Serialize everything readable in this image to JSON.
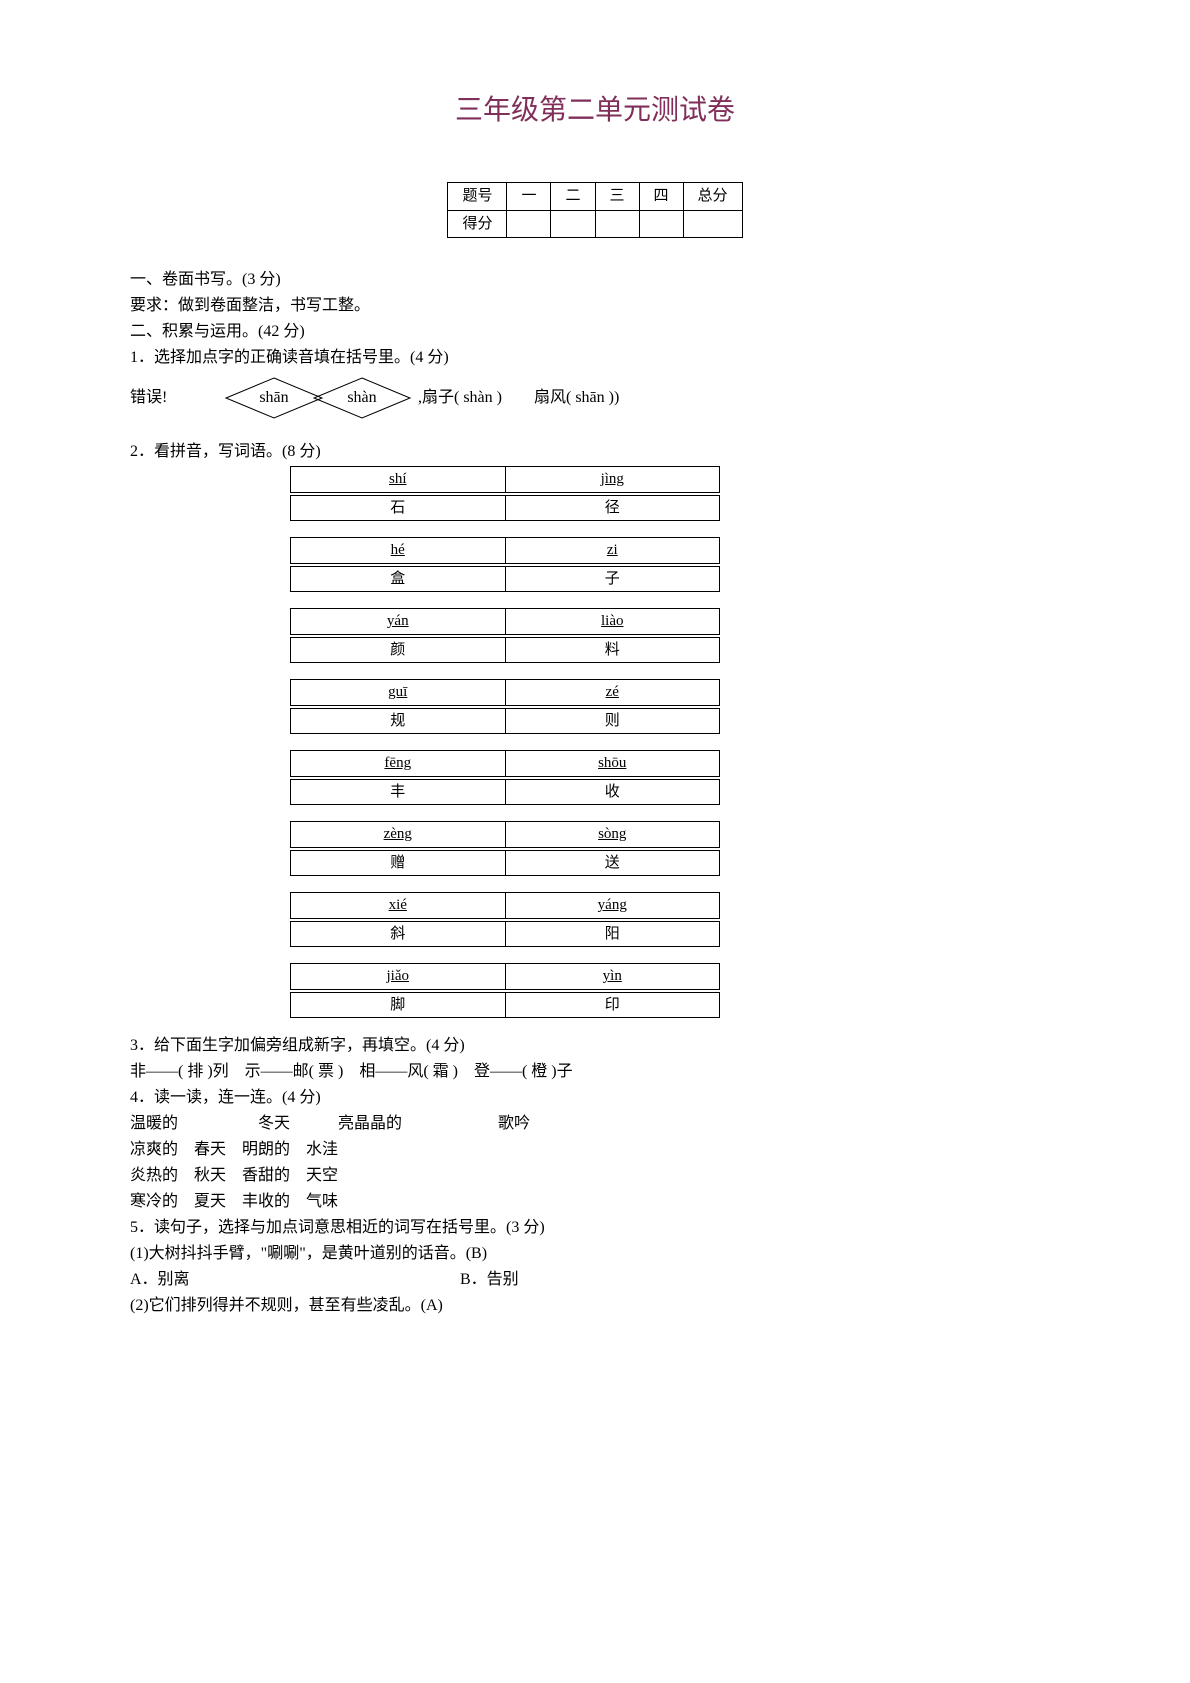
{
  "title": "三年级第二单元测试卷",
  "scoreTable": {
    "headers": [
      "题号",
      "一",
      "二",
      "三",
      "四",
      "总分"
    ],
    "row2": "得分"
  },
  "s1": {
    "header": "一、卷面书写。(3 分)",
    "req": "要求：做到卷面整洁，书写工整。"
  },
  "s2": {
    "header": "二、积累与运用。(42 分)"
  },
  "q1": {
    "header": "1．选择加点字的正确读音填在括号里。(4 分)",
    "err": "错误!",
    "d1": "shān",
    "d2": "shàn",
    "after": ",扇子( shàn )　　扇风( shān ))"
  },
  "q2": {
    "header": "2．看拼音，写词语。(8 分)",
    "words": [
      {
        "p1": "shí",
        "c1": "石",
        "p2": "jìng",
        "c2": "径"
      },
      {
        "p1": "hé",
        "c1": "盒",
        "p2": "zi",
        "c2": "子"
      },
      {
        "p1": "yán",
        "c1": "颜",
        "p2": "liào",
        "c2": "料"
      },
      {
        "p1": "guī",
        "c1": "规",
        "p2": "zé",
        "c2": "则"
      },
      {
        "p1": "fēng",
        "c1": "丰",
        "p2": "shōu",
        "c2": "收"
      },
      {
        "p1": "zèng",
        "c1": "赠",
        "p2": "sòng",
        "c2": "送"
      },
      {
        "p1": "xié",
        "c1": "斜",
        "p2": "yáng",
        "c2": "阳"
      },
      {
        "p1": "jiǎo",
        "c1": "脚",
        "p2": "yìn",
        "c2": "印"
      }
    ]
  },
  "q3": {
    "header": "3．给下面生字加偏旁组成新字，再填空。(4 分)",
    "line": "非――(  排  )列　示――邮(  票  )　相――风(  霜  )　登――(  橙  )子"
  },
  "q4": {
    "header": "4．读一读，连一连。(4 分)",
    "r1": "温暖的　　　　　冬天　　　亮晶晶的　　　　　　歌吟",
    "r2": "凉爽的　春天　明朗的　水洼",
    "r3": "炎热的　秋天　香甜的　天空",
    "r4": "寒冷的　夏天　丰收的　气味"
  },
  "q5": {
    "header": "5．读句子，选择与加点词意思相近的词写在括号里。(3 分)",
    "i1": "(1)大树抖抖手臂，\"唰唰\"，是黄叶道别的话音。(B)",
    "i1a": "A．别离",
    "i1b": "B．告别",
    "i2": "(2)它们排列得并不规则，甚至有些凌乱。(A)"
  }
}
